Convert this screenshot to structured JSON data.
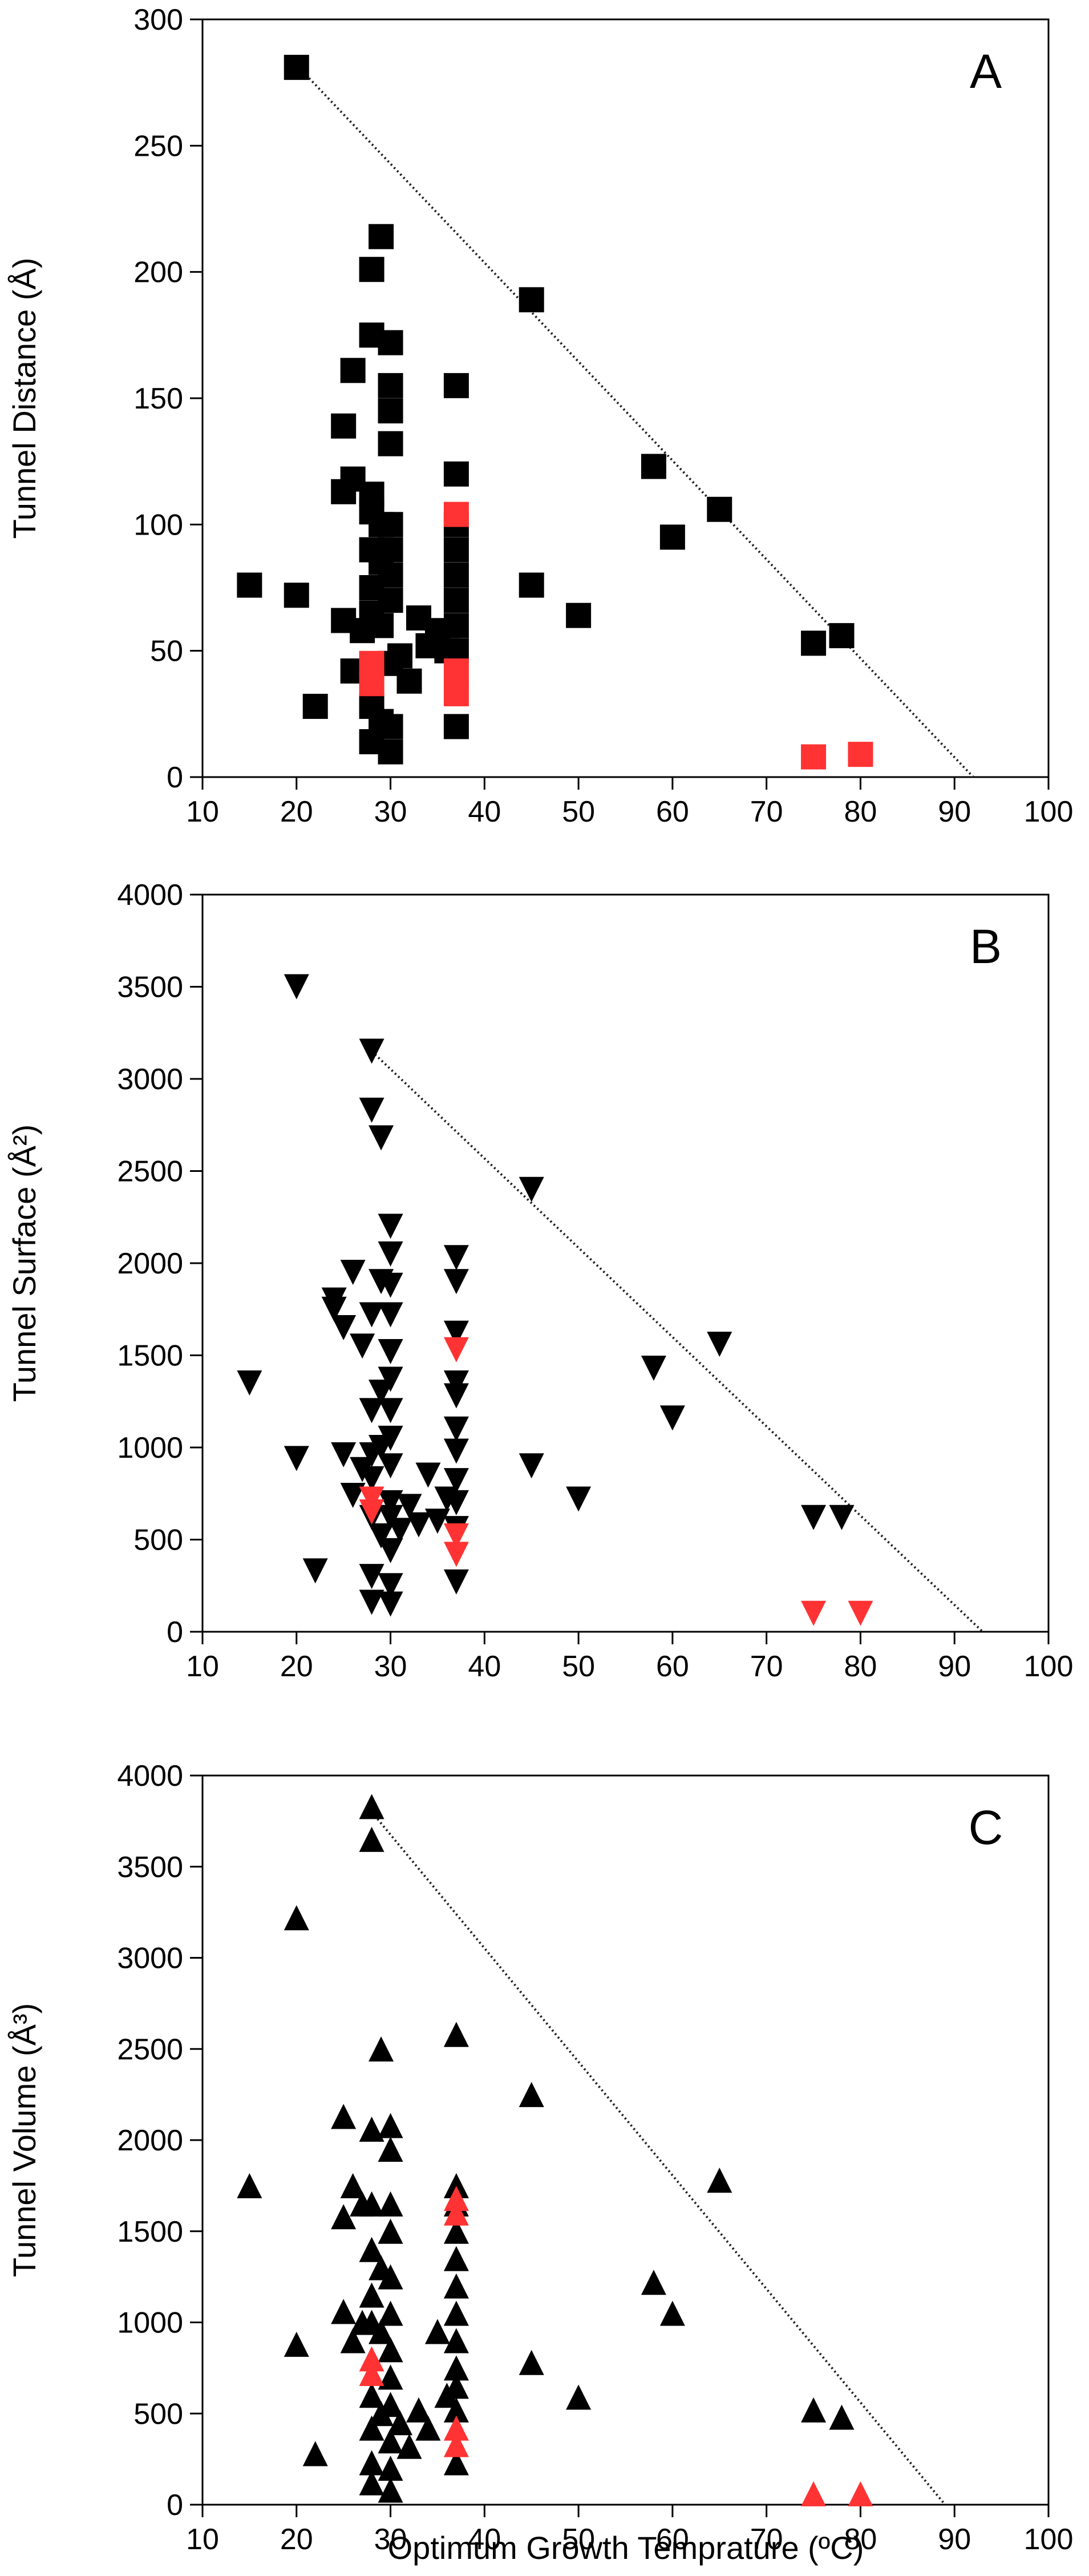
{
  "figure": {
    "xlabel": "Optimum Growth Temprature (ºC)"
  },
  "chart_data": [
    {
      "type": "scatter",
      "panel_label": "A",
      "ylabel": "Tunnel Distance (Å)",
      "xlim": [
        10,
        100
      ],
      "ylim": [
        0,
        300
      ],
      "xticks": [
        10,
        20,
        30,
        40,
        50,
        60,
        70,
        80,
        90,
        100
      ],
      "yticks": [
        0,
        50,
        100,
        150,
        200,
        250,
        300
      ],
      "marker": "square",
      "colors": {
        "black": "#000000",
        "red": "#ff3333"
      },
      "trend_line": {
        "x": [
          20,
          92
        ],
        "y": [
          282,
          0
        ]
      },
      "series": [
        {
          "color": "black",
          "points": [
            [
              20,
              281
            ],
            [
              15,
              76
            ],
            [
              20,
              72
            ],
            [
              22,
              28
            ],
            [
              25,
              62
            ],
            [
              25,
              139
            ],
            [
              25,
              113
            ],
            [
              26,
              161
            ],
            [
              26,
              118
            ],
            [
              26,
              42
            ],
            [
              27,
              58
            ],
            [
              28,
              201
            ],
            [
              28,
              175
            ],
            [
              28,
              112
            ],
            [
              28,
              105
            ],
            [
              28,
              90
            ],
            [
              28,
              75
            ],
            [
              28,
              65
            ],
            [
              28,
              28
            ],
            [
              28,
              14
            ],
            [
              29,
              214
            ],
            [
              29,
              100
            ],
            [
              29,
              85
            ],
            [
              29,
              60
            ],
            [
              29,
              22
            ],
            [
              30,
              172
            ],
            [
              30,
              155
            ],
            [
              30,
              145
            ],
            [
              30,
              132
            ],
            [
              30,
              100
            ],
            [
              30,
              90
            ],
            [
              30,
              80
            ],
            [
              30,
              70
            ],
            [
              30,
              45
            ],
            [
              30,
              20
            ],
            [
              30,
              10
            ],
            [
              31,
              48
            ],
            [
              32,
              38
            ],
            [
              33,
              63
            ],
            [
              34,
              52
            ],
            [
              35,
              58
            ],
            [
              36,
              50
            ],
            [
              37,
              155
            ],
            [
              37,
              120
            ],
            [
              37,
              100
            ],
            [
              37,
              90
            ],
            [
              37,
              80
            ],
            [
              37,
              70
            ],
            [
              37,
              60
            ],
            [
              37,
              50
            ],
            [
              37,
              20
            ],
            [
              45,
              189
            ],
            [
              45,
              76
            ],
            [
              50,
              64
            ],
            [
              58,
              123
            ],
            [
              60,
              95
            ],
            [
              65,
              106
            ],
            [
              75,
              53
            ],
            [
              78,
              56
            ]
          ]
        },
        {
          "color": "red",
          "points": [
            [
              28,
              45
            ],
            [
              28,
              37
            ],
            [
              37,
              104
            ],
            [
              37,
              42
            ],
            [
              37,
              33
            ],
            [
              75,
              8
            ],
            [
              80,
              9
            ]
          ]
        }
      ]
    },
    {
      "type": "scatter",
      "panel_label": "B",
      "ylabel": "Tunnel Surface (Å²)",
      "xlim": [
        10,
        100
      ],
      "ylim": [
        0,
        4000
      ],
      "xticks": [
        10,
        20,
        30,
        40,
        50,
        60,
        70,
        80,
        90,
        100
      ],
      "yticks": [
        0,
        500,
        1000,
        1500,
        2000,
        2500,
        3000,
        3500,
        4000
      ],
      "marker": "triangle-down",
      "colors": {
        "black": "#000000",
        "red": "#ff3333"
      },
      "trend_line": {
        "x": [
          28,
          93
        ],
        "y": [
          3150,
          0
        ]
      },
      "series": [
        {
          "color": "black",
          "points": [
            [
              15,
              1350
            ],
            [
              20,
              3500
            ],
            [
              20,
              940
            ],
            [
              22,
              330
            ],
            [
              24,
              1800
            ],
            [
              24,
              1750
            ],
            [
              25,
              960
            ],
            [
              25,
              1650
            ],
            [
              26,
              1950
            ],
            [
              26,
              740
            ],
            [
              27,
              1550
            ],
            [
              27,
              880
            ],
            [
              28,
              3150
            ],
            [
              28,
              2830
            ],
            [
              28,
              1720
            ],
            [
              28,
              1200
            ],
            [
              28,
              960
            ],
            [
              28,
              830
            ],
            [
              28,
              620
            ],
            [
              28,
              300
            ],
            [
              28,
              160
            ],
            [
              29,
              2680
            ],
            [
              29,
              1900
            ],
            [
              29,
              1300
            ],
            [
              29,
              1000
            ],
            [
              29,
              520
            ],
            [
              30,
              2200
            ],
            [
              30,
              2050
            ],
            [
              30,
              1880
            ],
            [
              30,
              1720
            ],
            [
              30,
              1520
            ],
            [
              30,
              1370
            ],
            [
              30,
              1200
            ],
            [
              30,
              1050
            ],
            [
              30,
              900
            ],
            [
              30,
              700
            ],
            [
              30,
              620
            ],
            [
              30,
              440
            ],
            [
              30,
              250
            ],
            [
              30,
              150
            ],
            [
              31,
              550
            ],
            [
              32,
              680
            ],
            [
              33,
              580
            ],
            [
              34,
              850
            ],
            [
              35,
              600
            ],
            [
              36,
              720
            ],
            [
              37,
              2030
            ],
            [
              37,
              1900
            ],
            [
              37,
              1620
            ],
            [
              37,
              1350
            ],
            [
              37,
              1280
            ],
            [
              37,
              1100
            ],
            [
              37,
              980
            ],
            [
              37,
              820
            ],
            [
              37,
              700
            ],
            [
              37,
              560
            ],
            [
              37,
              270
            ],
            [
              45,
              2400
            ],
            [
              45,
              900
            ],
            [
              50,
              720
            ],
            [
              58,
              1430
            ],
            [
              60,
              1160
            ],
            [
              65,
              1560
            ],
            [
              75,
              620
            ],
            [
              78,
              620
            ]
          ]
        },
        {
          "color": "red",
          "points": [
            [
              28,
              720
            ],
            [
              28,
              650
            ],
            [
              37,
              1530
            ],
            [
              37,
              520
            ],
            [
              37,
              420
            ],
            [
              75,
              100
            ],
            [
              80,
              100
            ]
          ]
        }
      ]
    },
    {
      "type": "scatter",
      "panel_label": "C",
      "ylabel": "Tunnel Volume (Å³)",
      "xlim": [
        10,
        100
      ],
      "ylim": [
        0,
        4000
      ],
      "xticks": [
        10,
        20,
        30,
        40,
        50,
        60,
        70,
        80,
        90,
        100
      ],
      "yticks": [
        0,
        500,
        1000,
        1500,
        2000,
        2500,
        3000,
        3500,
        4000
      ],
      "marker": "triangle-up",
      "colors": {
        "black": "#000000",
        "red": "#ff3333"
      },
      "trend_line": {
        "x": [
          28,
          89
        ],
        "y": [
          3800,
          0
        ]
      },
      "series": [
        {
          "color": "black",
          "points": [
            [
              15,
              1750
            ],
            [
              20,
              3220
            ],
            [
              20,
              880
            ],
            [
              22,
              280
            ],
            [
              25,
              2130
            ],
            [
              25,
              1060
            ],
            [
              25,
              1580
            ],
            [
              26,
              1750
            ],
            [
              26,
              900
            ],
            [
              27,
              1650
            ],
            [
              27,
              1000
            ],
            [
              28,
              3830
            ],
            [
              28,
              3650
            ],
            [
              28,
              2060
            ],
            [
              28,
              1650
            ],
            [
              28,
              1400
            ],
            [
              28,
              1150
            ],
            [
              28,
              1000
            ],
            [
              28,
              600
            ],
            [
              28,
              420
            ],
            [
              28,
              230
            ],
            [
              28,
              120
            ],
            [
              29,
              2500
            ],
            [
              29,
              1300
            ],
            [
              29,
              950
            ],
            [
              29,
              500
            ],
            [
              30,
              2080
            ],
            [
              30,
              1950
            ],
            [
              30,
              1650
            ],
            [
              30,
              1500
            ],
            [
              30,
              1250
            ],
            [
              30,
              1050
            ],
            [
              30,
              850
            ],
            [
              30,
              700
            ],
            [
              30,
              550
            ],
            [
              30,
              350
            ],
            [
              30,
              200
            ],
            [
              30,
              80
            ],
            [
              31,
              450
            ],
            [
              32,
              320
            ],
            [
              33,
              520
            ],
            [
              34,
              420
            ],
            [
              35,
              950
            ],
            [
              36,
              600
            ],
            [
              37,
              2580
            ],
            [
              37,
              1750
            ],
            [
              37,
              1650
            ],
            [
              37,
              1500
            ],
            [
              37,
              1350
            ],
            [
              37,
              1200
            ],
            [
              37,
              1050
            ],
            [
              37,
              900
            ],
            [
              37,
              750
            ],
            [
              37,
              650
            ],
            [
              37,
              520
            ],
            [
              37,
              230
            ],
            [
              45,
              2250
            ],
            [
              45,
              780
            ],
            [
              50,
              590
            ],
            [
              58,
              1220
            ],
            [
              60,
              1050
            ],
            [
              65,
              1780
            ],
            [
              75,
              520
            ],
            [
              78,
              480
            ]
          ]
        },
        {
          "color": "red",
          "points": [
            [
              28,
              800
            ],
            [
              28,
              720
            ],
            [
              37,
              1680
            ],
            [
              37,
              1600
            ],
            [
              37,
              420
            ],
            [
              37,
              330
            ],
            [
              75,
              60
            ],
            [
              80,
              60
            ]
          ]
        }
      ]
    }
  ]
}
